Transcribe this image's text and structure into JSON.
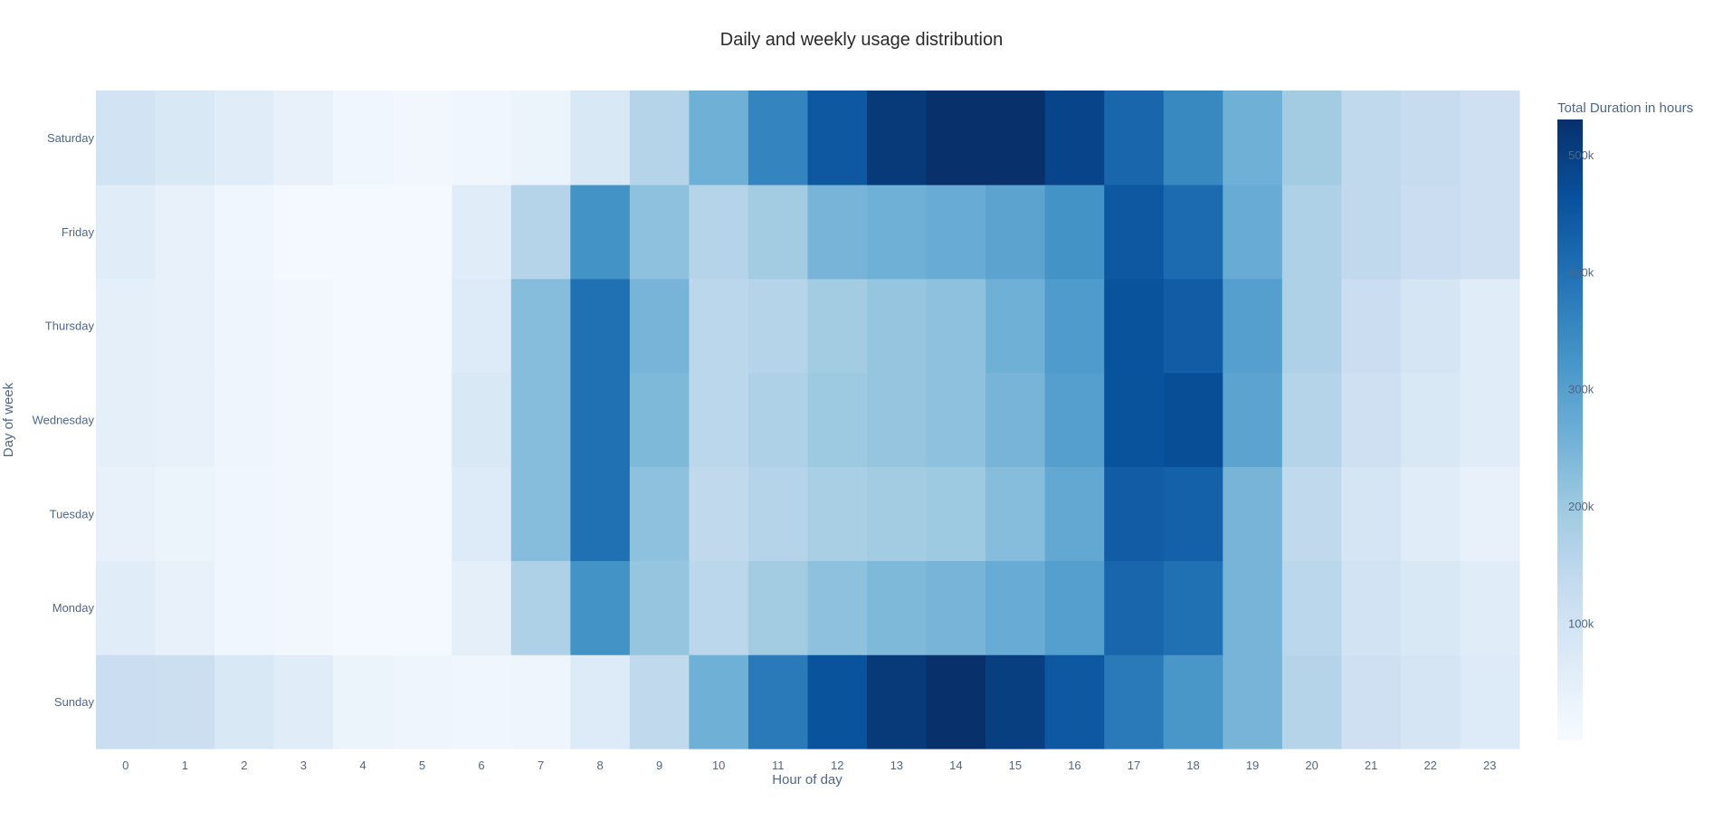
{
  "chart_data": {
    "type": "heatmap",
    "title": "Daily and weekly usage distribution",
    "xlabel": "Hour of day",
    "ylabel": "Day of week",
    "colorbar_title": "Total Duration in hours",
    "colorscale": "Blues",
    "zrange": [
      0,
      530000
    ],
    "colorbar_ticks": [
      {
        "value": 100000,
        "label": "100k"
      },
      {
        "value": 200000,
        "label": "200k"
      },
      {
        "value": 300000,
        "label": "300k"
      },
      {
        "value": 400000,
        "label": "400k"
      },
      {
        "value": 500000,
        "label": "500k"
      }
    ],
    "x_labels": [
      "0",
      "1",
      "2",
      "3",
      "4",
      "5",
      "6",
      "7",
      "8",
      "9",
      "10",
      "11",
      "12",
      "13",
      "14",
      "15",
      "16",
      "17",
      "18",
      "19",
      "20",
      "21",
      "22",
      "23"
    ],
    "y_labels": [
      "Sunday",
      "Monday",
      "Tuesday",
      "Wednesday",
      "Thursday",
      "Friday",
      "Saturday"
    ],
    "z": [
      [
        120000,
        115000,
        80000,
        60000,
        30000,
        25000,
        20000,
        25000,
        70000,
        140000,
        260000,
        380000,
        460000,
        510000,
        530000,
        500000,
        450000,
        380000,
        320000,
        250000,
        160000,
        110000,
        90000,
        70000
      ],
      [
        60000,
        40000,
        20000,
        15000,
        10000,
        10000,
        50000,
        170000,
        330000,
        210000,
        150000,
        190000,
        220000,
        240000,
        250000,
        270000,
        300000,
        420000,
        400000,
        250000,
        150000,
        100000,
        80000,
        60000
      ],
      [
        40000,
        30000,
        20000,
        15000,
        10000,
        10000,
        70000,
        230000,
        400000,
        220000,
        140000,
        160000,
        180000,
        190000,
        200000,
        230000,
        280000,
        440000,
        430000,
        250000,
        140000,
        90000,
        60000,
        40000
      ],
      [
        50000,
        40000,
        25000,
        15000,
        10000,
        10000,
        80000,
        230000,
        400000,
        240000,
        150000,
        170000,
        200000,
        210000,
        220000,
        250000,
        300000,
        460000,
        470000,
        290000,
        160000,
        110000,
        80000,
        60000
      ],
      [
        50000,
        40000,
        25000,
        15000,
        10000,
        10000,
        70000,
        230000,
        400000,
        250000,
        150000,
        160000,
        190000,
        210000,
        220000,
        260000,
        310000,
        460000,
        440000,
        300000,
        170000,
        120000,
        90000,
        60000
      ],
      [
        60000,
        40000,
        20000,
        10000,
        10000,
        10000,
        60000,
        160000,
        330000,
        220000,
        160000,
        190000,
        250000,
        260000,
        270000,
        290000,
        330000,
        450000,
        410000,
        270000,
        170000,
        140000,
        120000,
        110000
      ],
      [
        100000,
        80000,
        60000,
        40000,
        20000,
        15000,
        20000,
        30000,
        80000,
        160000,
        260000,
        360000,
        450000,
        510000,
        540000,
        540000,
        490000,
        420000,
        350000,
        260000,
        190000,
        140000,
        130000,
        110000
      ]
    ]
  }
}
